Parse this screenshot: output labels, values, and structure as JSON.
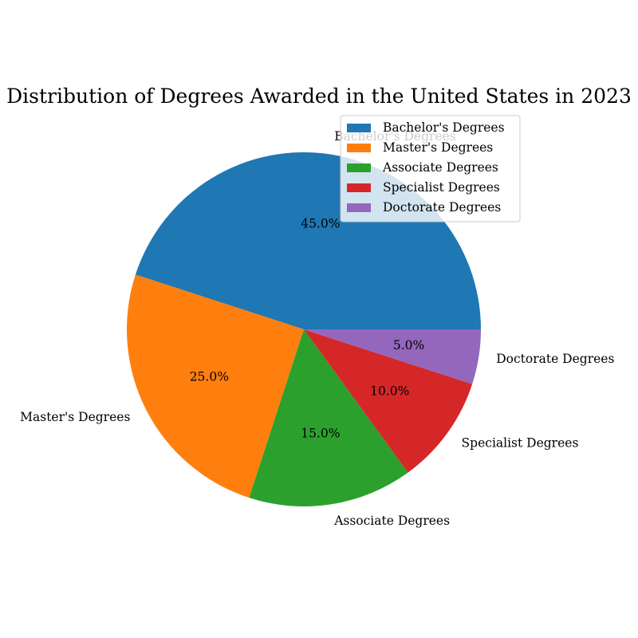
{
  "chart_data": {
    "type": "pie",
    "title": "Distribution of Degrees Awarded in the United States in 2023",
    "categories": [
      "Bachelor's Degrees",
      "Master's Degrees",
      "Associate Degrees",
      "Specialist Degrees",
      "Doctorate Degrees"
    ],
    "values": [
      45.0,
      25.0,
      15.0,
      10.0,
      5.0
    ],
    "percent_labels": [
      "45.0%",
      "25.0%",
      "15.0%",
      "10.0%",
      "5.0%"
    ],
    "colors": [
      "#1f77b4",
      "#ff7f0e",
      "#2ca02c",
      "#d62728",
      "#9467bd"
    ],
    "start_angle_deg": 0,
    "direction": "counterclockwise",
    "legend": {
      "position": "upper-right",
      "entries": [
        "Bachelor's Degrees",
        "Master's Degrees",
        "Associate Degrees",
        "Specialist Degrees",
        "Doctorate Degrees"
      ]
    }
  }
}
